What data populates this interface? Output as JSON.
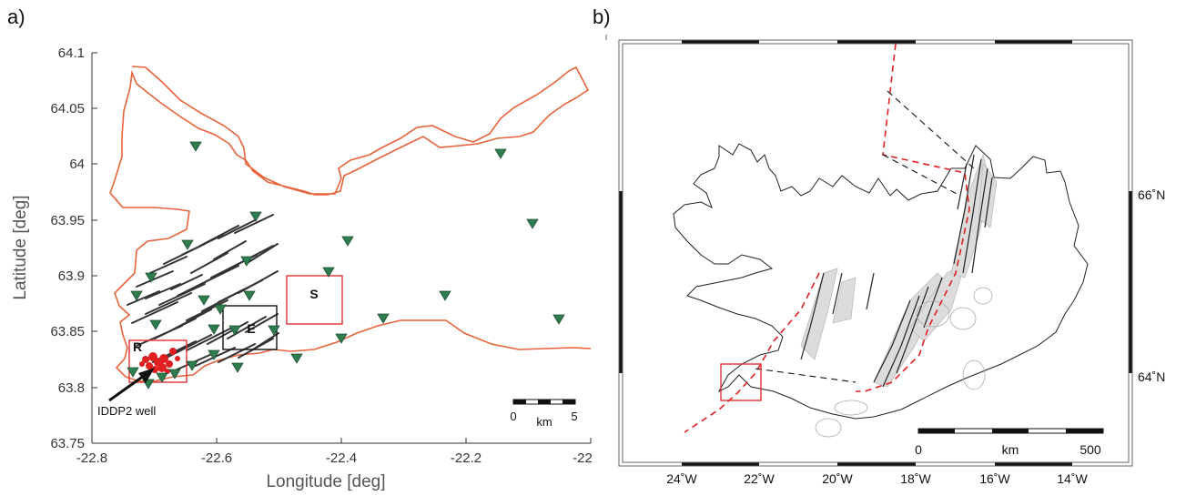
{
  "panel_a": {
    "label": "a)",
    "xlabel": "Longitude [deg]",
    "ylabel": "Latitude [deg]",
    "x_ticks": [
      "-22.8",
      "-22.6",
      "-22.4",
      "-22.2",
      "-22"
    ],
    "y_ticks": [
      "63.75",
      "63.8",
      "63.85",
      "63.9",
      "63.95",
      "64",
      "64.05",
      "64.1"
    ],
    "box_labels": {
      "R": "R",
      "E": "E",
      "S": "S"
    },
    "well_label": "IDDP2 well",
    "scalebar": {
      "start": "0",
      "unit": "km",
      "end": "5"
    },
    "colors": {
      "coastline": "#e8633a",
      "stations": "#2e7d4f",
      "seismicity": "#e02020",
      "faults": "#333333",
      "box_red": "#e03030",
      "box_black": "#111111"
    }
  },
  "panel_b": {
    "label": "b)",
    "x_ticks": [
      "24˚W",
      "22˚W",
      "20˚W",
      "18˚W",
      "16˚W",
      "14˚W"
    ],
    "y_ticks": [
      "66˚N",
      "64˚N"
    ],
    "scalebar": {
      "start": "0",
      "unit": "km",
      "end": "500"
    },
    "colors": {
      "plate_boundary": "#e02020",
      "volcanic_zones": "#d9d9d9",
      "inset_box": "#e03030"
    }
  }
}
